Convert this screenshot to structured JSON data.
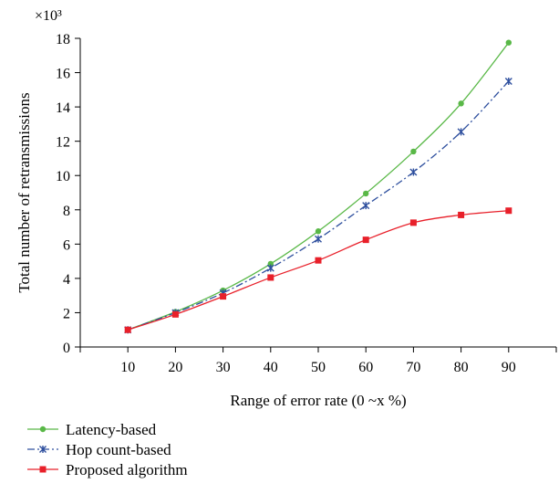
{
  "chart_data": {
    "type": "line",
    "xlabel": "Range of error rate (0 ~x %)",
    "ylabel": "Total number of retransmissions",
    "y_multiplier": "×10³",
    "categories": [
      10,
      20,
      30,
      40,
      50,
      60,
      70,
      80,
      90
    ],
    "xlim": [
      0,
      100
    ],
    "ylim": [
      0,
      18
    ],
    "yticks": [
      0,
      2,
      4,
      6,
      8,
      10,
      12,
      14,
      16,
      18
    ],
    "grid": false,
    "legend_position": "bottom",
    "series": [
      {
        "name": "Latency-based",
        "color": "#59b847",
        "marker": "circle",
        "line_style": "solid",
        "values": [
          1.0,
          2.05,
          3.3,
          4.85,
          6.75,
          8.95,
          11.4,
          14.2,
          17.75
        ]
      },
      {
        "name": "Hop count-based",
        "color": "#2e4f9e",
        "marker": "star",
        "line_style": "dashdot",
        "values": [
          1.0,
          2.0,
          3.15,
          4.6,
          6.3,
          8.25,
          10.2,
          12.55,
          15.5
        ]
      },
      {
        "name": "Proposed algorithm",
        "color": "#e8202a",
        "marker": "square",
        "line_style": "solid",
        "values": [
          1.0,
          1.9,
          2.95,
          4.05,
          5.05,
          6.25,
          7.25,
          7.7,
          7.95
        ]
      }
    ]
  }
}
